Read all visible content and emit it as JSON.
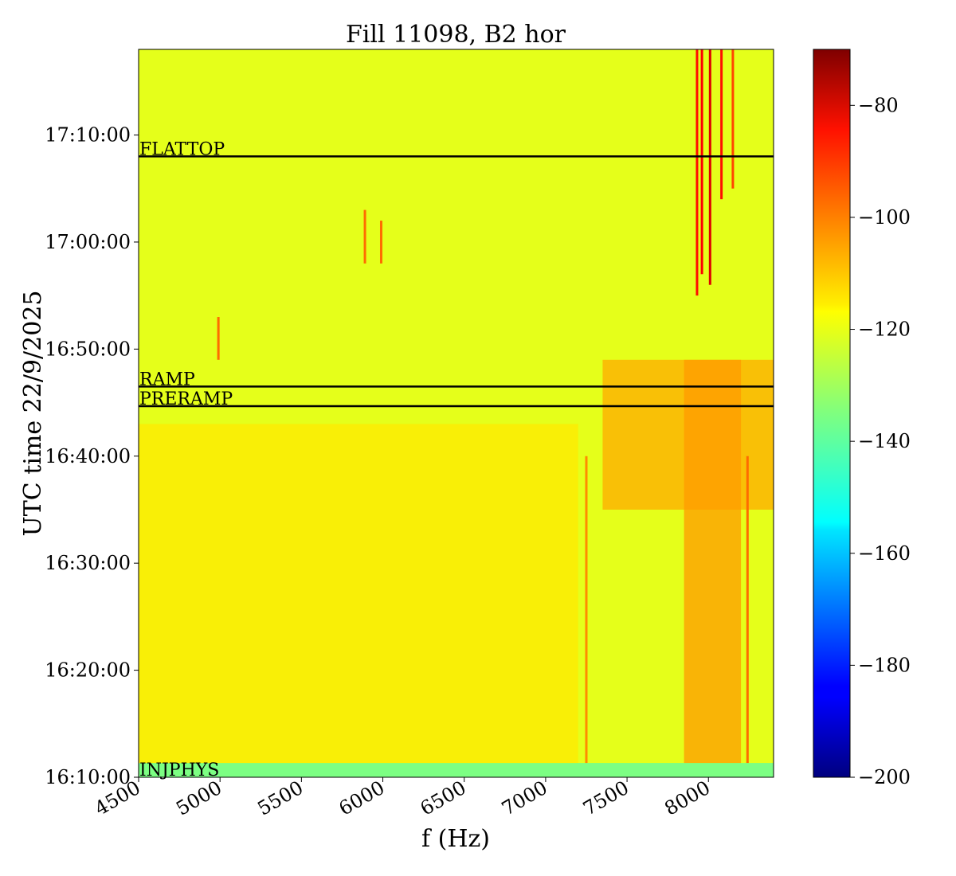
{
  "chart_data": {
    "type": "heatmap",
    "title": "Fill 11098, B2 hor",
    "xlabel": "f (Hz)",
    "ylabel": "UTC time 22/9/2025",
    "xlim": [
      4500,
      8400
    ],
    "ylim": [
      "16:10:00",
      "17:18:00"
    ],
    "x_ticks": [
      "4500",
      "5000",
      "5500",
      "6000",
      "6500",
      "7000",
      "7500",
      "8000"
    ],
    "y_ticks": [
      "16:10:00",
      "16:20:00",
      "16:30:00",
      "16:40:00",
      "16:50:00",
      "17:00:00",
      "17:10:00"
    ],
    "colorbar": {
      "colormap": "jet",
      "range": [
        -200,
        -70
      ],
      "ticks": [
        "−80",
        "−100",
        "−120",
        "−140",
        "−160",
        "−180",
        "−200"
      ]
    },
    "background_level": -122,
    "phase_markers": [
      {
        "label": "FLATTOP",
        "time": "17:08:00"
      },
      {
        "label": "RAMP",
        "time": "16:46:30"
      },
      {
        "label": "PRERAMP",
        "time": "16:44:40"
      },
      {
        "label": "INJPHYS",
        "time": "16:10:00"
      }
    ],
    "regions": [
      {
        "t": [
          "16:10:00",
          "16:11:20"
        ],
        "f": [
          4500,
          8400
        ],
        "value": -140
      },
      {
        "t": [
          "16:11:20",
          "16:43:00"
        ],
        "f": [
          4500,
          7200
        ],
        "value": -116
      },
      {
        "t": [
          "16:35:00",
          "16:49:00"
        ],
        "f": [
          7350,
          8400
        ],
        "value": -108
      },
      {
        "t": [
          "16:11:20",
          "16:49:00"
        ],
        "f": [
          7850,
          8200
        ],
        "value": -106
      }
    ],
    "lines": [
      {
        "f": 4990,
        "t": [
          "16:49:00",
          "16:53:00"
        ],
        "value": -100
      },
      {
        "f": 5890,
        "t": [
          "16:58:00",
          "17:03:00"
        ],
        "value": -100
      },
      {
        "f": 5990,
        "t": [
          "16:58:00",
          "17:02:00"
        ],
        "value": -100
      },
      {
        "f": 7250,
        "t": [
          "16:11:20",
          "16:40:00"
        ],
        "value": -104
      },
      {
        "f": 7930,
        "t": [
          "16:55:00",
          "17:18:00"
        ],
        "value": -88
      },
      {
        "f": 7960,
        "t": [
          "16:57:00",
          "17:18:00"
        ],
        "value": -86
      },
      {
        "f": 8010,
        "t": [
          "16:56:00",
          "17:18:00"
        ],
        "value": -82
      },
      {
        "f": 8080,
        "t": [
          "17:04:00",
          "17:18:00"
        ],
        "value": -88
      },
      {
        "f": 8150,
        "t": [
          "17:05:00",
          "17:18:00"
        ],
        "value": -95
      },
      {
        "f": 8240,
        "t": [
          "16:11:20",
          "16:40:00"
        ],
        "value": -100
      }
    ]
  }
}
